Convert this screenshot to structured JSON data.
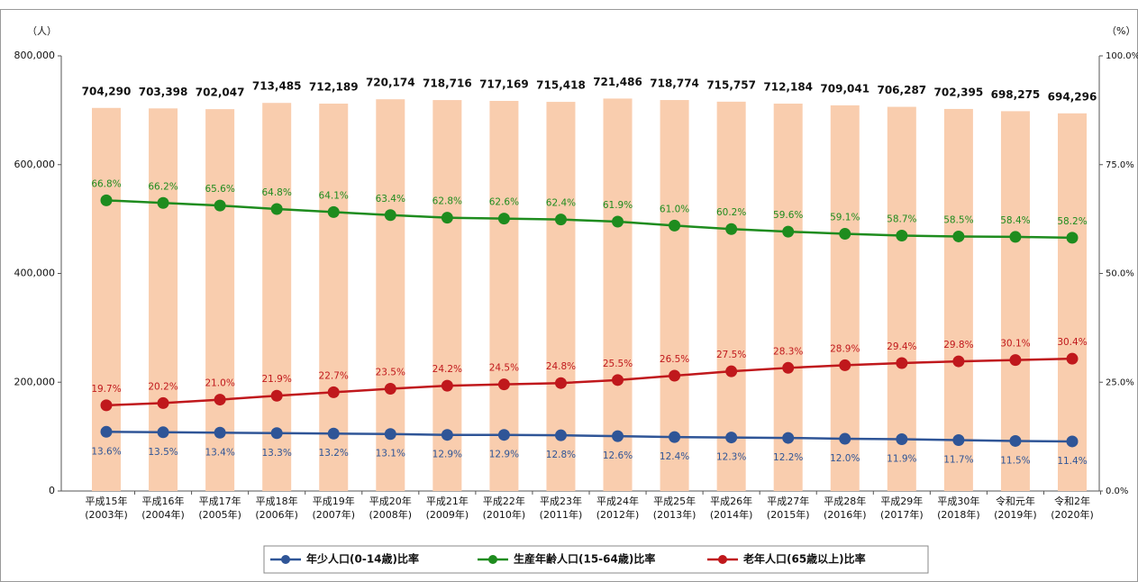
{
  "chart_data": {
    "type": "bar-line",
    "ylabel": "（人）",
    "y2label": "（%）",
    "categories": [
      [
        "平成15年",
        "(2003年)"
      ],
      [
        "平成16年",
        "(2004年)"
      ],
      [
        "平成17年",
        "(2005年)"
      ],
      [
        "平成18年",
        "(2006年)"
      ],
      [
        "平成19年",
        "(2007年)"
      ],
      [
        "平成20年",
        "(2008年)"
      ],
      [
        "平成21年",
        "(2009年)"
      ],
      [
        "平成22年",
        "(2010年)"
      ],
      [
        "平成23年",
        "(2011年)"
      ],
      [
        "平成24年",
        "(2012年)"
      ],
      [
        "平成25年",
        "(2013年)"
      ],
      [
        "平成26年",
        "(2014年)"
      ],
      [
        "平成27年",
        "(2015年)"
      ],
      [
        "平成28年",
        "(2016年)"
      ],
      [
        "平成29年",
        "(2017年)"
      ],
      [
        "平成30年",
        "(2018年)"
      ],
      [
        "令和元年",
        "(2019年)"
      ],
      [
        "令和2年",
        "(2020年)"
      ]
    ],
    "bars": {
      "color": "#f9cdae",
      "values": [
        704290,
        703398,
        702047,
        713485,
        712189,
        720174,
        718716,
        717169,
        715418,
        721486,
        718774,
        715757,
        712184,
        709041,
        706287,
        702395,
        698275,
        694296
      ],
      "value_labels": [
        "704,290",
        "703,398",
        "702,047",
        "713,485",
        "712,189",
        "720,174",
        "718,716",
        "717,169",
        "715,418",
        "721,486",
        "718,774",
        "715,757",
        "712,184",
        "709,041",
        "706,287",
        "702,395",
        "698,275",
        "694,296"
      ]
    },
    "series": [
      {
        "name": "年少人口(0-14歳)比率",
        "color": "#2f5597",
        "axis": "y2",
        "values": [
          13.6,
          13.5,
          13.4,
          13.3,
          13.2,
          13.1,
          12.9,
          12.9,
          12.8,
          12.6,
          12.4,
          12.3,
          12.2,
          12.0,
          11.9,
          11.7,
          11.5,
          11.4
        ],
        "value_labels": [
          "13.6%",
          "13.5%",
          "13.4%",
          "13.3%",
          "13.2%",
          "13.1%",
          "12.9%",
          "12.9%",
          "12.8%",
          "12.6%",
          "12.4%",
          "12.3%",
          "12.2%",
          "12.0%",
          "11.9%",
          "11.7%",
          "11.5%",
          "11.4%"
        ]
      },
      {
        "name": "生産年齢人口(15-64歳)比率",
        "color": "#1e8c1e",
        "axis": "y2",
        "values": [
          66.8,
          66.2,
          65.6,
          64.8,
          64.1,
          63.4,
          62.8,
          62.6,
          62.4,
          61.9,
          61.0,
          60.2,
          59.6,
          59.1,
          58.7,
          58.5,
          58.4,
          58.2
        ],
        "value_labels": [
          "66.8%",
          "66.2%",
          "65.6%",
          "64.8%",
          "64.1%",
          "63.4%",
          "62.8%",
          "62.6%",
          "62.4%",
          "61.9%",
          "61.0%",
          "60.2%",
          "59.6%",
          "59.1%",
          "58.7%",
          "58.5%",
          "58.4%",
          "58.2%"
        ]
      },
      {
        "name": "老年人口(65歳以上)比率",
        "color": "#c0181c",
        "axis": "y2",
        "values": [
          19.7,
          20.2,
          21.0,
          21.9,
          22.7,
          23.5,
          24.2,
          24.5,
          24.8,
          25.5,
          26.5,
          27.5,
          28.3,
          28.9,
          29.4,
          29.8,
          30.1,
          30.4
        ],
        "value_labels": [
          "19.7%",
          "20.2%",
          "21.0%",
          "21.9%",
          "22.7%",
          "23.5%",
          "24.2%",
          "24.5%",
          "24.8%",
          "25.5%",
          "26.5%",
          "27.5%",
          "28.3%",
          "28.9%",
          "29.4%",
          "29.8%",
          "30.1%",
          "30.4%"
        ]
      }
    ],
    "ylim": [
      0,
      800000
    ],
    "yticks": [
      0,
      {
        "value": 200000,
        "label": "200,000"
      },
      {
        "value": 400000,
        "label": "400,000"
      },
      {
        "value": 600000,
        "label": "600,000"
      },
      {
        "value": 800000,
        "label": "800,000"
      }
    ],
    "y2lim": [
      0,
      100
    ],
    "y2ticks": [
      {
        "value": 0,
        "label": "0.0%"
      },
      {
        "value": 25,
        "label": "25.0%"
      },
      {
        "value": 50,
        "label": "50.0%"
      },
      {
        "value": 75,
        "label": "75.0%"
      },
      {
        "value": 100,
        "label": "100.0%"
      }
    ],
    "legend": "bottom"
  }
}
